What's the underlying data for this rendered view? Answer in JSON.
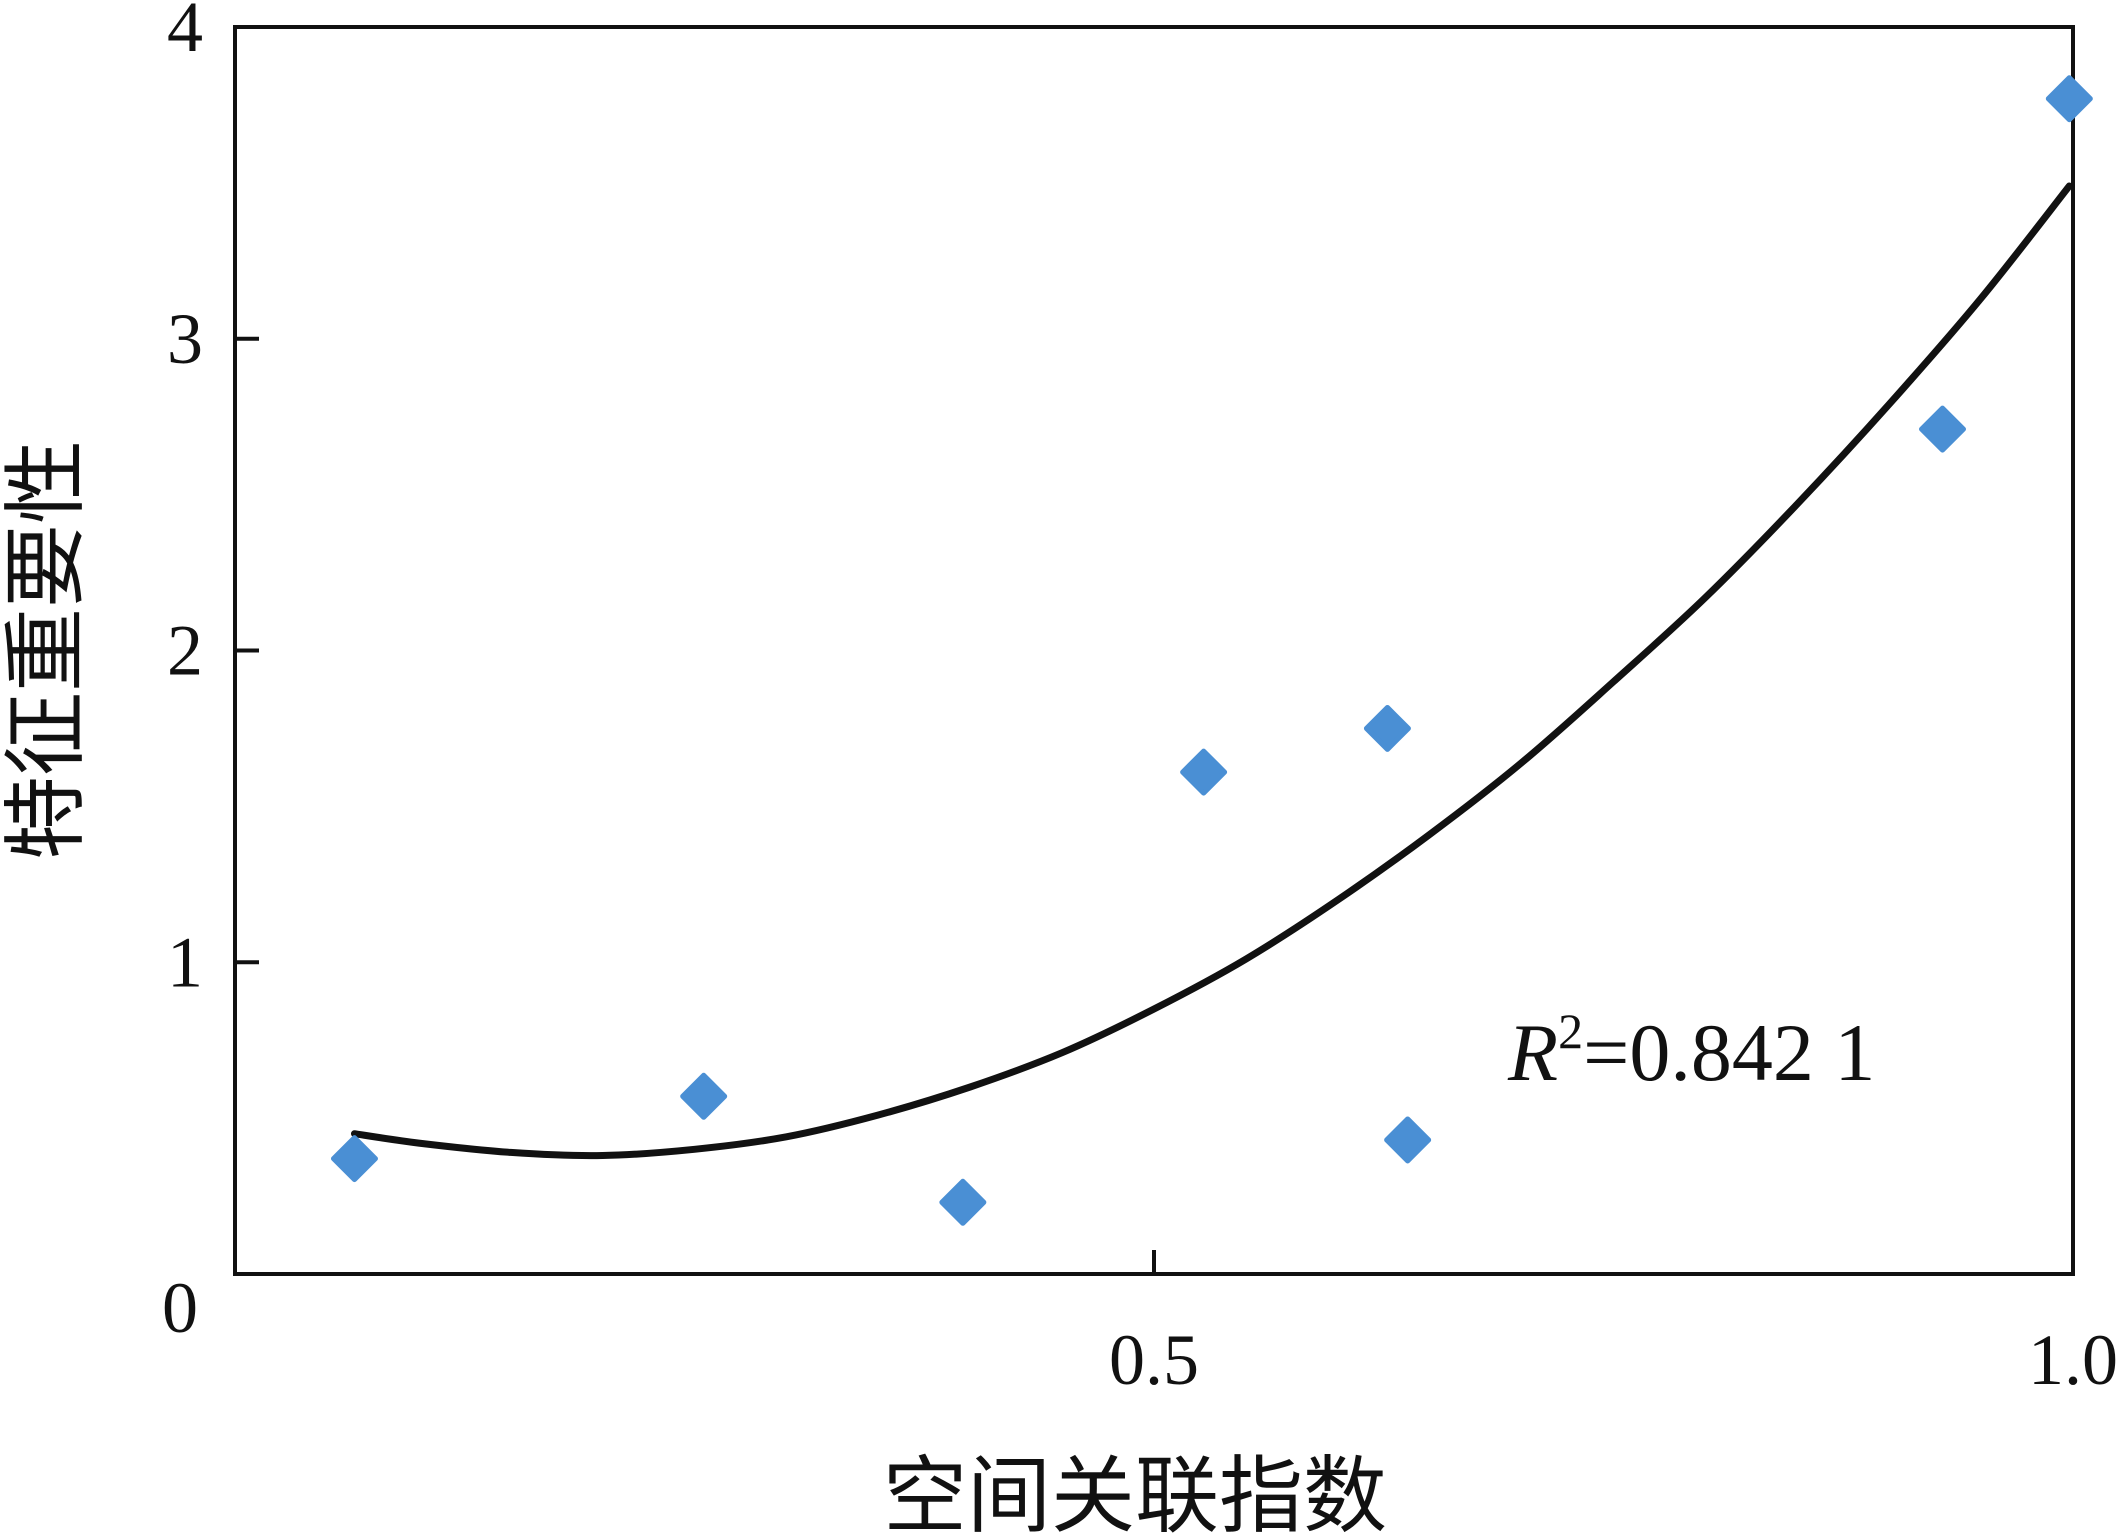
{
  "chart_data": {
    "type": "scatter",
    "title": "",
    "xlabel": "空间关联指数",
    "ylabel": "特征重要性",
    "xlim": [
      0,
      1.0
    ],
    "ylim": [
      0,
      4
    ],
    "x_ticks": [
      "0",
      "0.5",
      "1.0"
    ],
    "y_ticks": [
      "1",
      "2",
      "3",
      "4"
    ],
    "grid": false,
    "marker_color": "#4a8fd4",
    "trend_color": "#111111",
    "series": [
      {
        "x": [
          0.065,
          0.255,
          0.396,
          0.527,
          0.627,
          0.638,
          0.929,
          0.998
        ],
        "y": [
          0.37,
          0.57,
          0.23,
          1.61,
          1.75,
          0.43,
          2.71,
          3.77
        ]
      }
    ],
    "trendline": {
      "type": "polynomial",
      "x": [
        0.065,
        0.1,
        0.15,
        0.2,
        0.25,
        0.3,
        0.35,
        0.4,
        0.45,
        0.5,
        0.55,
        0.6,
        0.65,
        0.7,
        0.75,
        0.8,
        0.85,
        0.9,
        0.95,
        0.998
      ],
      "y": [
        0.45,
        0.42,
        0.39,
        0.38,
        0.4,
        0.44,
        0.51,
        0.6,
        0.71,
        0.85,
        1.01,
        1.2,
        1.41,
        1.64,
        1.9,
        2.17,
        2.47,
        2.79,
        3.13,
        3.49
      ]
    },
    "annotation": {
      "r_symbol": "R",
      "r_exponent": "2",
      "text": "=0.842 1"
    }
  }
}
